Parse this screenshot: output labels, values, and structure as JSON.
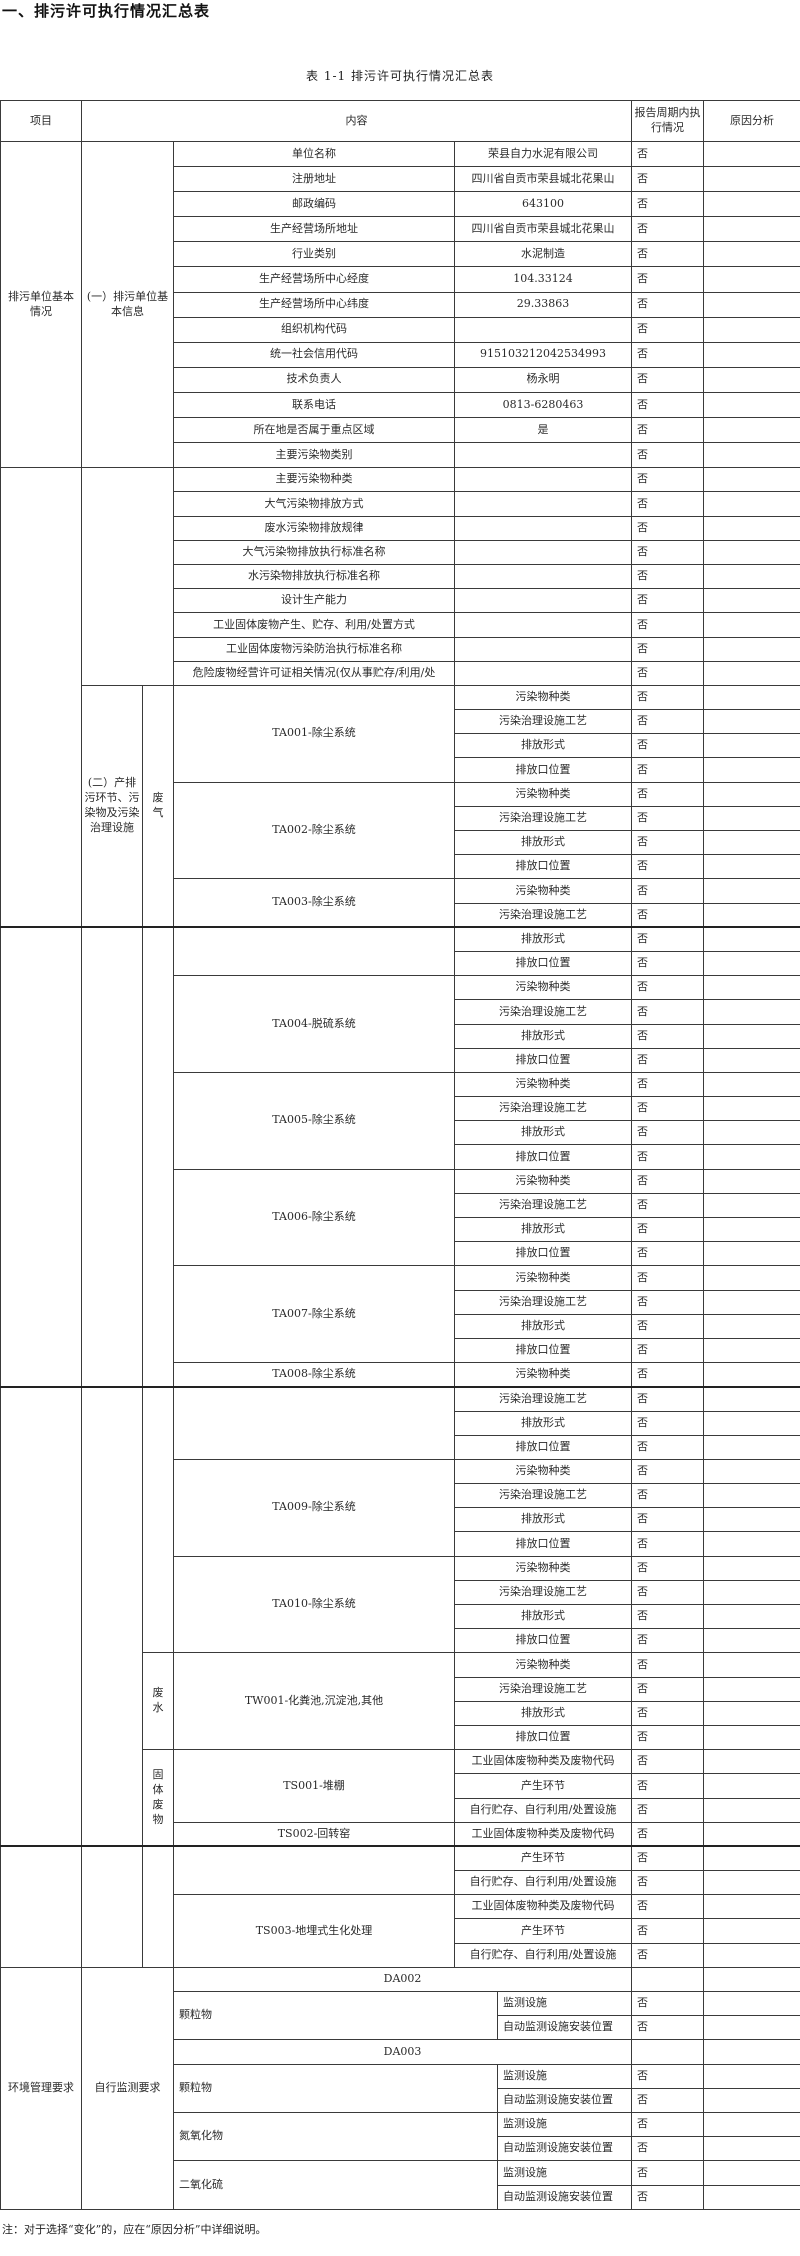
{
  "doc_title": "一、排污许可执行情况汇总表",
  "caption": "表 1-1 排污许可执行情况汇总表",
  "headers": {
    "item": "项目",
    "content": "内容",
    "status": "报告周期内执行情况",
    "reason": "原因分析"
  },
  "basic_info": {
    "category": "排污单位基本情况",
    "group": "(一）排污单位基本信息",
    "items": [
      {
        "label": "单位名称",
        "value": "荣县自力水泥有限公司",
        "status": "否"
      },
      {
        "label": "注册地址",
        "value": "四川省自贡市荣县城北花果山",
        "status": "否"
      },
      {
        "label": "邮政编码",
        "value": "643100",
        "status": "否"
      },
      {
        "label": "生产经营场所地址",
        "value": "四川省自贡市荣县城北花果山",
        "status": "否"
      },
      {
        "label": "行业类别",
        "value": "水泥制造",
        "status": "否"
      },
      {
        "label": "生产经营场所中心经度",
        "value": "104.33124",
        "status": "否"
      },
      {
        "label": "生产经营场所中心纬度",
        "value": "29.33863",
        "status": "否"
      },
      {
        "label": "组织机构代码",
        "value": "",
        "status": "否"
      },
      {
        "label": "统一社会信用代码",
        "value": "915103212042534993",
        "status": "否"
      },
      {
        "label": "技术负责人",
        "value": "杨永明",
        "status": "否"
      },
      {
        "label": "联系电话",
        "value": "0813-6280463",
        "status": "否"
      },
      {
        "label": "所在地是否属于重点区域",
        "value": "是",
        "status": "否"
      },
      {
        "label": "主要污染物类别",
        "value": "",
        "status": "否"
      }
    ]
  },
  "other_info": [
    {
      "label": "主要污染物种类",
      "status": "否"
    },
    {
      "label": "大气污染物排放方式",
      "status": "否"
    },
    {
      "label": "废水污染物排放规律",
      "status": "否"
    },
    {
      "label": "大气污染物排放执行标准名称",
      "status": "否"
    },
    {
      "label": "水污染物排放执行标准名称",
      "status": "否"
    },
    {
      "label": "设计生产能力",
      "status": "否"
    },
    {
      "label": "工业固体废物产生、贮存、利用/处置方式",
      "status": "否"
    },
    {
      "label": "工业固体废物污染防治执行标准名称",
      "status": "否"
    },
    {
      "label": "危险废物经营许可证相关情况(仅从事贮存/利用/处",
      "status": "否"
    }
  ],
  "facilities": {
    "group": "(二）产排污环节、污染物及污染治理设施",
    "types": [
      {
        "type": "废气",
        "facilities": [
          {
            "name": "TA001-除尘系统",
            "items": [
              {
                "item": "污染物种类",
                "status": "否"
              },
              {
                "item": "污染治理设施工艺",
                "status": "否"
              },
              {
                "item": "排放形式",
                "status": "否"
              },
              {
                "item": "排放口位置",
                "status": "否"
              }
            ]
          },
          {
            "name": "TA002-除尘系统",
            "items": [
              {
                "item": "污染物种类",
                "status": "否"
              },
              {
                "item": "污染治理设施工艺",
                "status": "否"
              },
              {
                "item": "排放形式",
                "status": "否"
              },
              {
                "item": "排放口位置",
                "status": "否"
              }
            ]
          },
          {
            "name": "TA003-除尘系统",
            "items": [
              {
                "item": "污染物种类",
                "status": "否"
              },
              {
                "item": "污染治理设施工艺",
                "status": "否"
              },
              {
                "item": "排放形式",
                "status": "否"
              },
              {
                "item": "排放口位置",
                "status": "否"
              }
            ]
          },
          {
            "name": "TA004-脱硫系统",
            "items": [
              {
                "item": "污染物种类",
                "status": "否"
              },
              {
                "item": "污染治理设施工艺",
                "status": "否"
              },
              {
                "item": "排放形式",
                "status": "否"
              },
              {
                "item": "排放口位置",
                "status": "否"
              }
            ]
          },
          {
            "name": "TA005-除尘系统",
            "items": [
              {
                "item": "污染物种类",
                "status": "否"
              },
              {
                "item": "污染治理设施工艺",
                "status": "否"
              },
              {
                "item": "排放形式",
                "status": "否"
              },
              {
                "item": "排放口位置",
                "status": "否"
              }
            ]
          },
          {
            "name": "TA006-除尘系统",
            "items": [
              {
                "item": "污染物种类",
                "status": "否"
              },
              {
                "item": "污染治理设施工艺",
                "status": "否"
              },
              {
                "item": "排放形式",
                "status": "否"
              },
              {
                "item": "排放口位置",
                "status": "否"
              }
            ]
          },
          {
            "name": "TA007-除尘系统",
            "items": [
              {
                "item": "污染物种类",
                "status": "否"
              },
              {
                "item": "污染治理设施工艺",
                "status": "否"
              },
              {
                "item": "排放形式",
                "status": "否"
              },
              {
                "item": "排放口位置",
                "status": "否"
              }
            ]
          },
          {
            "name": "TA008-除尘系统",
            "items": [
              {
                "item": "污染物种类",
                "status": "否"
              },
              {
                "item": "污染治理设施工艺",
                "status": "否"
              },
              {
                "item": "排放形式",
                "status": "否"
              },
              {
                "item": "排放口位置",
                "status": "否"
              }
            ]
          },
          {
            "name": "TA009-除尘系统",
            "items": [
              {
                "item": "污染物种类",
                "status": "否"
              },
              {
                "item": "污染治理设施工艺",
                "status": "否"
              },
              {
                "item": "排放形式",
                "status": "否"
              },
              {
                "item": "排放口位置",
                "status": "否"
              }
            ]
          },
          {
            "name": "TA010-除尘系统",
            "items": [
              {
                "item": "污染物种类",
                "status": "否"
              },
              {
                "item": "污染治理设施工艺",
                "status": "否"
              },
              {
                "item": "排放形式",
                "status": "否"
              },
              {
                "item": "排放口位置",
                "status": "否"
              }
            ]
          }
        ]
      },
      {
        "type": "废水",
        "facilities": [
          {
            "name": "TW001-化粪池,沉淀池,其他",
            "items": [
              {
                "item": "污染物种类",
                "status": "否"
              },
              {
                "item": "污染治理设施工艺",
                "status": "否"
              },
              {
                "item": "排放形式",
                "status": "否"
              },
              {
                "item": "排放口位置",
                "status": "否"
              }
            ]
          }
        ]
      },
      {
        "type": "固体废物",
        "facilities": [
          {
            "name": "TS001-堆棚",
            "items": [
              {
                "item": "工业固体废物种类及废物代码",
                "status": "否"
              },
              {
                "item": "产生环节",
                "status": "否"
              },
              {
                "item": "自行贮存、自行利用/处置设施",
                "status": "否"
              }
            ]
          },
          {
            "name": "TS002-回转窑",
            "items": [
              {
                "item": "工业固体废物种类及废物代码",
                "status": "否"
              },
              {
                "item": "产生环节",
                "status": "否"
              },
              {
                "item": "自行贮存、自行利用/处置设施",
                "status": "否"
              }
            ]
          },
          {
            "name": "TS003-地埋式生化处理",
            "items": [
              {
                "item": "工业固体废物种类及废物代码",
                "status": "否"
              },
              {
                "item": "产生环节",
                "status": "否"
              },
              {
                "item": "自行贮存、自行利用/处置设施",
                "status": "否"
              }
            ]
          }
        ]
      }
    ]
  },
  "monitoring": {
    "category": "环境管理要求",
    "group": "自行监测要求",
    "outlets": [
      {
        "outlet": "DA002",
        "pollutants": [
          {
            "name": "颗粒物",
            "items": [
              {
                "item": "监测设施",
                "status": "否"
              },
              {
                "item": "自动监测设施安装位置",
                "status": "否"
              }
            ]
          }
        ]
      },
      {
        "outlet": "DA003",
        "pollutants": [
          {
            "name": "颗粒物",
            "items": [
              {
                "item": "监测设施",
                "status": "否"
              },
              {
                "item": "自动监测设施安装位置",
                "status": "否"
              }
            ]
          },
          {
            "name": "氮氧化物",
            "items": [
              {
                "item": "监测设施",
                "status": "否"
              },
              {
                "item": "自动监测设施安装位置",
                "status": "否"
              }
            ]
          },
          {
            "name": "二氧化硫",
            "items": [
              {
                "item": "监测设施",
                "status": "否"
              },
              {
                "item": "自动监测设施安装位置",
                "status": "否"
              }
            ]
          }
        ]
      }
    ]
  },
  "note": "注：对于选择“变化”的，应在“原因分析”中详细说明。"
}
